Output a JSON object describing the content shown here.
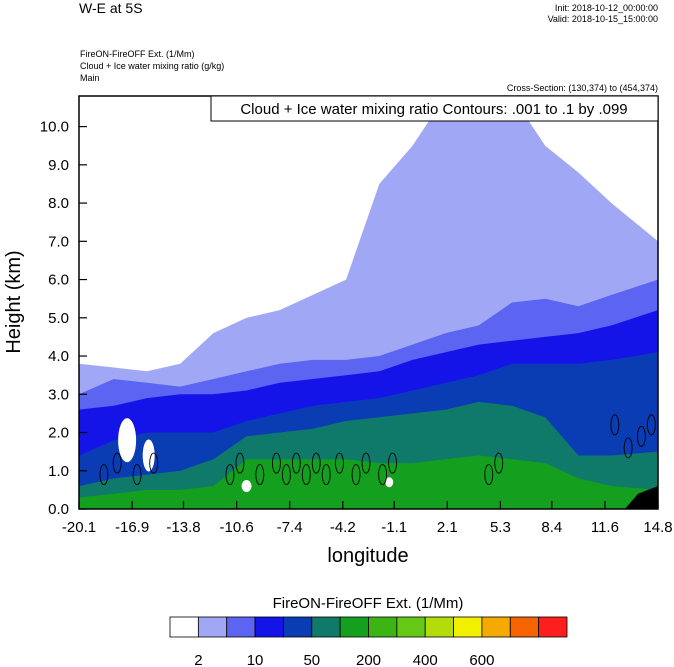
{
  "header": {
    "title": "W-E at 5S",
    "init": "Init: 2018-10-12_00:00:00",
    "valid": "Valid: 2018-10-15_15:00:00",
    "subtitle_1": "FireON-FireOFF Ext.   (1/Mm)",
    "subtitle_2": "Cloud + Ice water mixing ratio   (g/kg)",
    "subtitle_3": "Main",
    "cross_section": "Cross-Section: (130,374) to (454,374)"
  },
  "chart_data": {
    "type": "contour",
    "title": "Cloud + Ice water mixing ratio Contours: .001 to .1 by .099",
    "xlabel": "longitude",
    "ylabel": "Height (km)",
    "xlim": [
      -20.1,
      14.8
    ],
    "ylim": [
      0,
      10.8
    ],
    "x_ticks": [
      -20.1,
      -16.9,
      -13.8,
      -10.6,
      -7.4,
      -4.2,
      -1.1,
      2.1,
      5.3,
      8.4,
      11.6,
      14.8
    ],
    "x_tick_labels": [
      "-20.1",
      "-16.9",
      "-13.8",
      "-10.6",
      "-7.4",
      "-4.2",
      "-1.1",
      "2.1",
      "5.3",
      "8.4",
      "11.6",
      "14.8"
    ],
    "y_ticks": [
      0,
      1,
      2,
      3,
      4,
      5,
      6,
      7,
      8,
      9,
      10
    ],
    "y_tick_labels": [
      "0.0",
      "1.0",
      "2.0",
      "3.0",
      "4.0",
      "5.0",
      "6.0",
      "7.0",
      "8.0",
      "9.0",
      "10.0"
    ],
    "filled_layers": [
      {
        "level_index": 1,
        "tops_km": [
          [
            -20.1,
            3.8
          ],
          [
            -18,
            3.7
          ],
          [
            -16,
            3.6
          ],
          [
            -14,
            3.8
          ],
          [
            -12,
            4.6
          ],
          [
            -10,
            5.0
          ],
          [
            -8,
            5.2
          ],
          [
            -6,
            5.6
          ],
          [
            -4,
            6.0
          ],
          [
            -2,
            8.5
          ],
          [
            0,
            9.5
          ],
          [
            2,
            10.8
          ],
          [
            4,
            10.8
          ],
          [
            6,
            10.8
          ],
          [
            8,
            9.5
          ],
          [
            10,
            8.8
          ],
          [
            12,
            8.0
          ],
          [
            14.8,
            7.0
          ]
        ]
      },
      {
        "level_index": 2,
        "tops_km": [
          [
            -20.1,
            3.0
          ],
          [
            -18,
            3.4
          ],
          [
            -16,
            3.3
          ],
          [
            -14,
            3.2
          ],
          [
            -12,
            3.4
          ],
          [
            -10,
            3.6
          ],
          [
            -8,
            3.8
          ],
          [
            -6,
            3.9
          ],
          [
            -4,
            3.9
          ],
          [
            -2,
            4.0
          ],
          [
            0,
            4.3
          ],
          [
            2,
            4.6
          ],
          [
            4,
            4.8
          ],
          [
            6,
            5.4
          ],
          [
            8,
            5.5
          ],
          [
            10,
            5.3
          ],
          [
            12,
            5.6
          ],
          [
            14.8,
            6.0
          ]
        ]
      },
      {
        "level_index": 3,
        "tops_km": [
          [
            -20.1,
            2.6
          ],
          [
            -18,
            2.7
          ],
          [
            -16,
            2.9
          ],
          [
            -14,
            3.0
          ],
          [
            -12,
            3.0
          ],
          [
            -10,
            3.1
          ],
          [
            -8,
            3.3
          ],
          [
            -6,
            3.4
          ],
          [
            -4,
            3.5
          ],
          [
            -2,
            3.6
          ],
          [
            0,
            3.9
          ],
          [
            2,
            4.1
          ],
          [
            4,
            4.3
          ],
          [
            6,
            4.4
          ],
          [
            8,
            4.5
          ],
          [
            10,
            4.6
          ],
          [
            12,
            4.8
          ],
          [
            14.8,
            5.2
          ]
        ]
      },
      {
        "level_index": 4,
        "tops_km": [
          [
            -20.1,
            1.4
          ],
          [
            -18,
            1.8
          ],
          [
            -16,
            2.0
          ],
          [
            -14,
            2.0
          ],
          [
            -12,
            2.0
          ],
          [
            -10,
            2.3
          ],
          [
            -8,
            2.5
          ],
          [
            -6,
            2.7
          ],
          [
            -4,
            2.8
          ],
          [
            -2,
            2.9
          ],
          [
            0,
            3.1
          ],
          [
            2,
            3.3
          ],
          [
            4,
            3.5
          ],
          [
            6,
            3.8
          ],
          [
            8,
            3.8
          ],
          [
            10,
            3.8
          ],
          [
            12,
            3.9
          ],
          [
            14.8,
            4.1
          ]
        ]
      },
      {
        "level_index": 5,
        "tops_km": [
          [
            -20.1,
            0.6
          ],
          [
            -18,
            0.8
          ],
          [
            -16,
            0.9
          ],
          [
            -14,
            1.0
          ],
          [
            -12,
            1.3
          ],
          [
            -10,
            1.9
          ],
          [
            -8,
            2.0
          ],
          [
            -6,
            2.1
          ],
          [
            -4,
            2.3
          ],
          [
            -2,
            2.4
          ],
          [
            0,
            2.5
          ],
          [
            2,
            2.6
          ],
          [
            4,
            2.8
          ],
          [
            6,
            2.7
          ],
          [
            8,
            2.4
          ],
          [
            10,
            1.4
          ],
          [
            12,
            1.4
          ],
          [
            14.8,
            1.5
          ]
        ]
      },
      {
        "level_index": 6,
        "tops_km": [
          [
            -20.1,
            0.3
          ],
          [
            -18,
            0.4
          ],
          [
            -16,
            0.5
          ],
          [
            -14,
            0.5
          ],
          [
            -12,
            0.6
          ],
          [
            -10,
            1.3
          ],
          [
            -8,
            1.3
          ],
          [
            -6,
            1.3
          ],
          [
            -4,
            1.3
          ],
          [
            -2,
            1.2
          ],
          [
            0,
            1.2
          ],
          [
            2,
            1.3
          ],
          [
            4,
            1.4
          ],
          [
            6,
            1.3
          ],
          [
            8,
            1.2
          ],
          [
            10,
            0.8
          ],
          [
            12,
            0.6
          ],
          [
            14.8,
            0.5
          ]
        ]
      }
    ],
    "colorbar": {
      "title": "FireON-FireOFF Ext.  (1/Mm)",
      "colors": [
        "#ffffff",
        "#a0a8f5",
        "#5c64f2",
        "#1414e8",
        "#0a3cb4",
        "#0f7a6a",
        "#14a01e",
        "#3cb414",
        "#64c814",
        "#b4dc0a",
        "#f0f000",
        "#f5aa00",
        "#f56400",
        "#ff1e1e"
      ],
      "labels": [
        "2",
        "10",
        "50",
        "200",
        "400",
        "600"
      ]
    }
  }
}
